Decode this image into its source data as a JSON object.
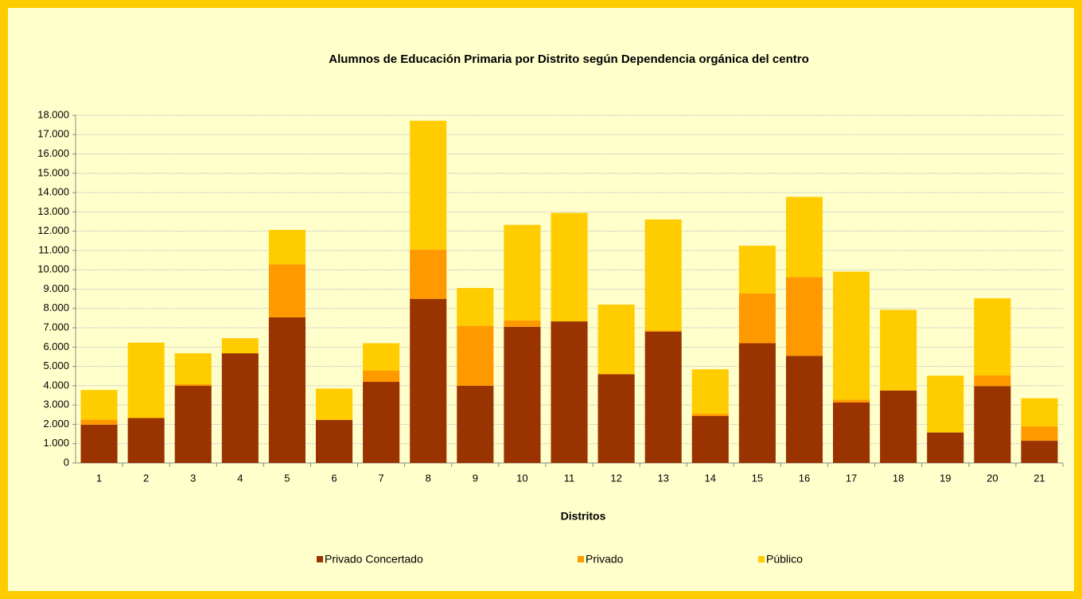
{
  "chart_data": {
    "type": "stacked-bar",
    "title": "Alumnos de Educación Primaria por Distrito según Dependencia orgánica del centro",
    "xlabel": "Distritos",
    "categories": [
      "1",
      "2",
      "3",
      "4",
      "5",
      "6",
      "7",
      "8",
      "9",
      "10",
      "11",
      "12",
      "13",
      "14",
      "15",
      "16",
      "17",
      "18",
      "19",
      "20",
      "21"
    ],
    "series": [
      {
        "name": "Privado Concertado",
        "color": "#993300",
        "values": [
          1980,
          2330,
          4000,
          5680,
          7540,
          2230,
          4200,
          8500,
          4000,
          7050,
          7330,
          4600,
          6800,
          2430,
          6200,
          5550,
          3130,
          3750,
          1580,
          3980,
          1150
        ]
      },
      {
        "name": "Privado",
        "color": "#ff9900",
        "values": [
          270,
          0,
          80,
          0,
          2750,
          0,
          580,
          2550,
          3100,
          330,
          0,
          0,
          60,
          120,
          2580,
          4080,
          150,
          0,
          0,
          550,
          740
        ]
      },
      {
        "name": "Público",
        "color": "#ffcc00",
        "values": [
          1530,
          3900,
          1600,
          780,
          1780,
          1620,
          1420,
          6670,
          1960,
          4950,
          5620,
          3600,
          5750,
          2300,
          2470,
          4150,
          6630,
          4180,
          2940,
          4000,
          1460
        ]
      }
    ],
    "ylim": [
      0,
      18000
    ],
    "yticks": [
      0,
      {
        "value": 1000,
        "label": "1.000"
      },
      {
        "value": 2000,
        "label": "2.000"
      },
      {
        "value": 3000,
        "label": "3.000"
      },
      {
        "value": 4000,
        "label": "4.000"
      },
      {
        "value": 5000,
        "label": "5.000"
      },
      {
        "value": 6000,
        "label": "6.000"
      },
      {
        "value": 7000,
        "label": "7.000"
      },
      {
        "value": 8000,
        "label": "8.000"
      },
      {
        "value": 9000,
        "label": "9.000"
      },
      {
        "value": 10000,
        "label": "10.000"
      },
      {
        "value": 11000,
        "label": "11.000"
      },
      {
        "value": 12000,
        "label": "12.000"
      },
      {
        "value": 13000,
        "label": "13.000"
      },
      {
        "value": 14000,
        "label": "14.000"
      },
      {
        "value": 15000,
        "label": "15.000"
      },
      {
        "value": 16000,
        "label": "16.000"
      },
      {
        "value": 17000,
        "label": "17.000"
      },
      {
        "value": 18000,
        "label": "18.000"
      }
    ],
    "grid": true,
    "legend": "bottom"
  }
}
